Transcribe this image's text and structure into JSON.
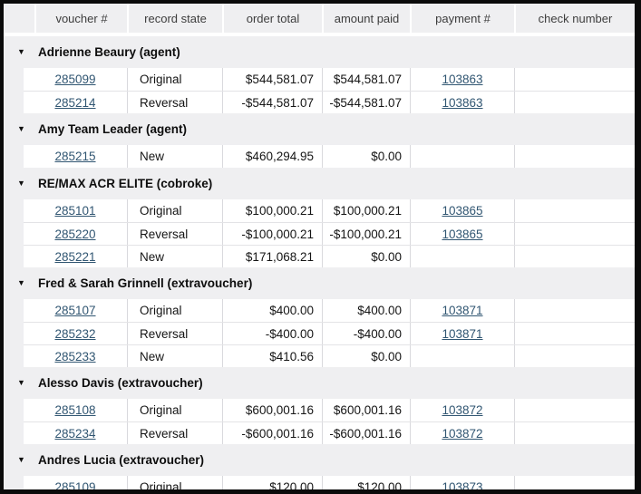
{
  "colors": {
    "window_border": "#0b0b0b",
    "header_bg": "#efeff1",
    "group_band_bg": "#efeff1",
    "link": "#315672",
    "row_bg": "#ffffff"
  },
  "table": {
    "collapse_icon": "▼",
    "header": {
      "columns": [
        "voucher #",
        "record state",
        "order total",
        "amount paid",
        "payment #",
        "check number"
      ]
    },
    "groups": [
      {
        "label": "Adrienne Beaury (agent)",
        "rows": [
          {
            "voucher": "285099",
            "state": "Original",
            "order": "$544,581.07",
            "paid": "$544,581.07",
            "payment": "103863",
            "check": ""
          },
          {
            "voucher": "285214",
            "state": "Reversal",
            "order": "-$544,581.07",
            "paid": "-$544,581.07",
            "payment": "103863",
            "check": ""
          }
        ]
      },
      {
        "label": "Amy Team Leader (agent)",
        "rows": [
          {
            "voucher": "285215",
            "state": "New",
            "order": "$460,294.95",
            "paid": "$0.00",
            "payment": "",
            "check": ""
          }
        ]
      },
      {
        "label": "RE/MAX ACR ELITE (cobroke)",
        "rows": [
          {
            "voucher": "285101",
            "state": "Original",
            "order": "$100,000.21",
            "paid": "$100,000.21",
            "payment": "103865",
            "check": ""
          },
          {
            "voucher": "285220",
            "state": "Reversal",
            "order": "-$100,000.21",
            "paid": "-$100,000.21",
            "payment": "103865",
            "check": ""
          },
          {
            "voucher": "285221",
            "state": "New",
            "order": "$171,068.21",
            "paid": "$0.00",
            "payment": "",
            "check": ""
          }
        ]
      },
      {
        "label": "Fred & Sarah Grinnell (extravoucher)",
        "rows": [
          {
            "voucher": "285107",
            "state": "Original",
            "order": "$400.00",
            "paid": "$400.00",
            "payment": "103871",
            "check": ""
          },
          {
            "voucher": "285232",
            "state": "Reversal",
            "order": "-$400.00",
            "paid": "-$400.00",
            "payment": "103871",
            "check": ""
          },
          {
            "voucher": "285233",
            "state": "New",
            "order": "$410.56",
            "paid": "$0.00",
            "payment": "",
            "check": ""
          }
        ]
      },
      {
        "label": "Alesso Davis (extravoucher)",
        "rows": [
          {
            "voucher": "285108",
            "state": "Original",
            "order": "$600,001.16",
            "paid": "$600,001.16",
            "payment": "103872",
            "check": ""
          },
          {
            "voucher": "285234",
            "state": "Reversal",
            "order": "-$600,001.16",
            "paid": "-$600,001.16",
            "payment": "103872",
            "check": ""
          }
        ]
      },
      {
        "label": "Andres Lucia (extravoucher)",
        "rows": [
          {
            "voucher": "285109",
            "state": "Original",
            "order": "$120.00",
            "paid": "$120.00",
            "payment": "103873",
            "check": ""
          }
        ]
      }
    ]
  }
}
